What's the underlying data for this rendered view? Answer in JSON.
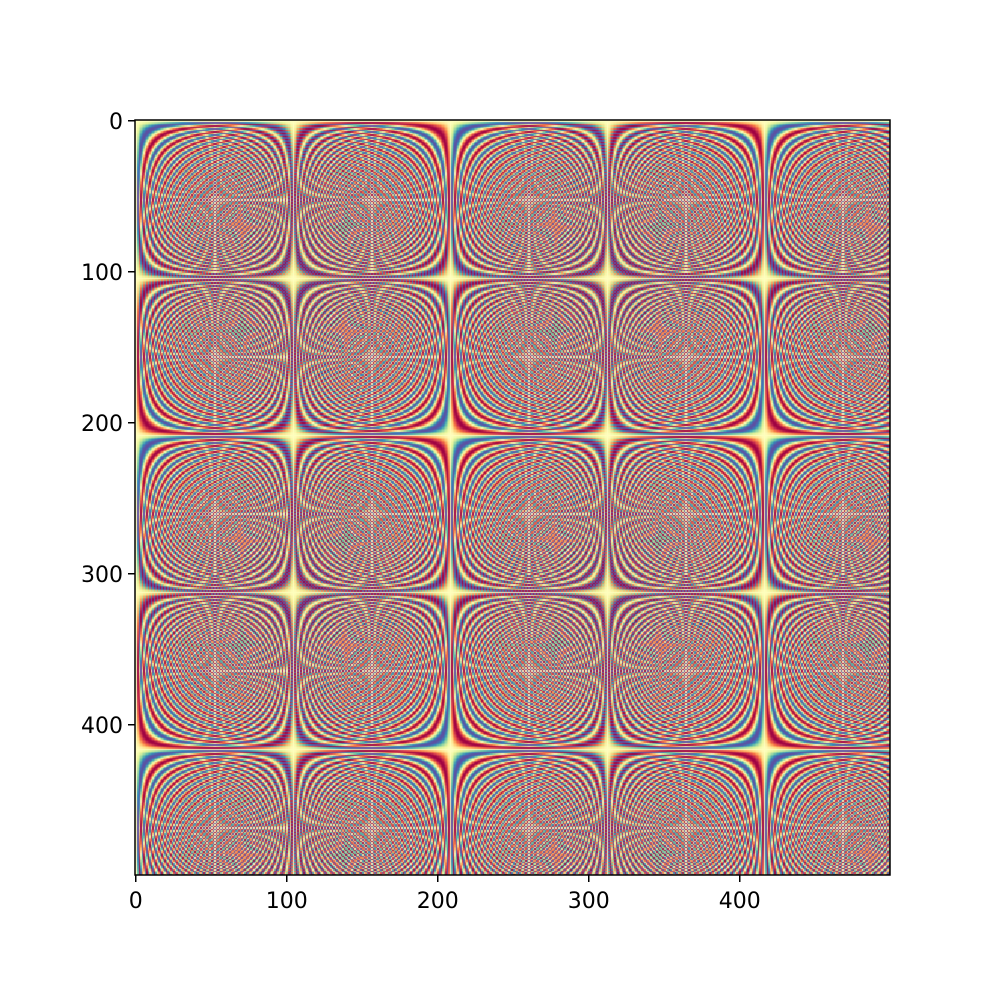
{
  "chart_data": {
    "type": "heatmap",
    "title": "",
    "xlabel": "",
    "ylabel": "",
    "xlim": [
      0,
      499
    ],
    "ylim": [
      499,
      0
    ],
    "x_ticks": [
      0,
      100,
      200,
      300,
      400
    ],
    "y_ticks": [
      0,
      100,
      200,
      300,
      400
    ],
    "x_tick_labels": [
      "0",
      "100",
      "200",
      "300",
      "400"
    ],
    "y_tick_labels": [
      "0",
      "100",
      "200",
      "300",
      "400"
    ],
    "grid": false,
    "colormap": "Spectral",
    "colors": {
      "stops": [
        "#9e0142",
        "#d53e4f",
        "#f46d43",
        "#fdae61",
        "#fee08b",
        "#ffffbf",
        "#e6f598",
        "#abdda4",
        "#66c2a5",
        "#3288bd",
        "#5e4fa2"
      ]
    },
    "pattern_period": 104
  }
}
